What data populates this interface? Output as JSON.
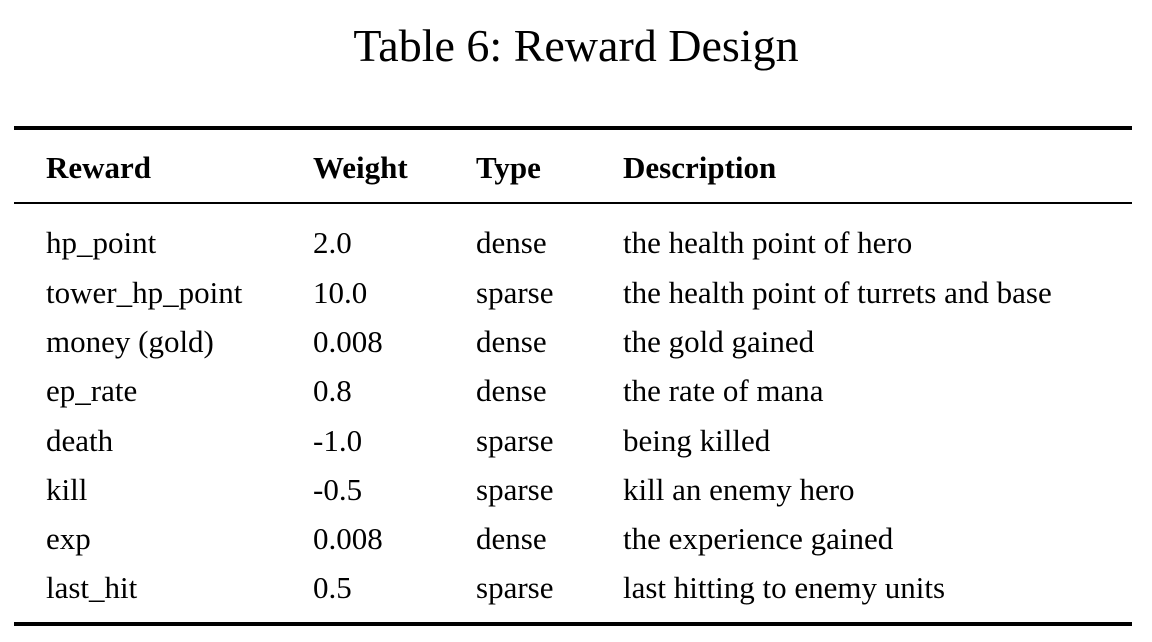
{
  "caption": "Table 6: Reward Design",
  "table": {
    "headers": {
      "reward": "Reward",
      "weight": "Weight",
      "type": "Type",
      "description": "Description"
    },
    "rows": [
      {
        "reward": "hp_point",
        "weight": "2.0",
        "type": "dense",
        "description": "the health point of hero"
      },
      {
        "reward": "tower_hp_point",
        "weight": "10.0",
        "type": "sparse",
        "description": "the health point of turrets and base"
      },
      {
        "reward": "money (gold)",
        "weight": "0.008",
        "type": "dense",
        "description": "the gold gained"
      },
      {
        "reward": "ep_rate",
        "weight": "0.8",
        "type": "dense",
        "description": "the rate of mana"
      },
      {
        "reward": "death",
        "weight": "-1.0",
        "type": "sparse",
        "description": "being killed"
      },
      {
        "reward": "kill",
        "weight": "-0.5",
        "type": "sparse",
        "description": "kill an enemy hero"
      },
      {
        "reward": "exp",
        "weight": "0.008",
        "type": "dense",
        "description": "the experience gained"
      },
      {
        "reward": "last_hit",
        "weight": "0.5",
        "type": "sparse",
        "description": "last hitting to enemy units"
      }
    ]
  }
}
